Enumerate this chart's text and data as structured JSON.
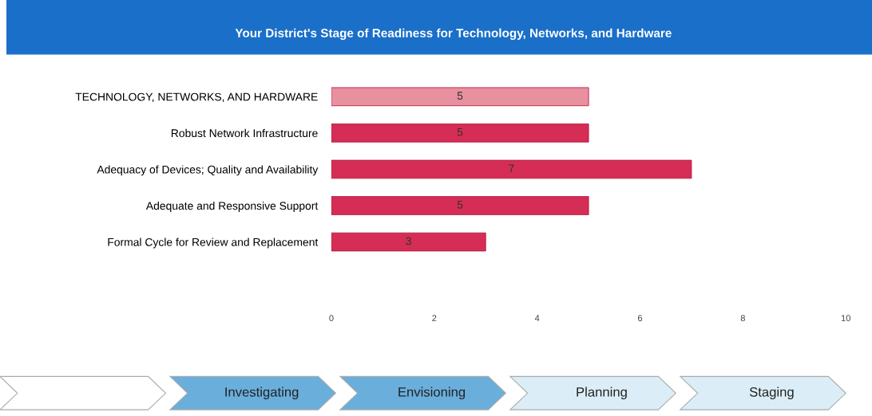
{
  "chart_data": {
    "type": "bar",
    "orientation": "horizontal",
    "title": "Your District's Stage of Readiness for Technology, Networks, and Hardware",
    "categories": [
      "TECHNOLOGY, NETWORKS, AND HARDWARE",
      "Robust Network Infrastructure",
      "Adequacy of Devices; Quality and Availability",
      "Adequate and Responsive Support",
      "Formal Cycle for Review and Replacement"
    ],
    "values": [
      5,
      5,
      7,
      5,
      3
    ],
    "colors": [
      "#e8909f",
      "#d52d55",
      "#d52d55",
      "#d52d55",
      "#d52d55"
    ],
    "xlim": [
      0,
      10
    ],
    "xticks": [
      0,
      2,
      4,
      6,
      8,
      10
    ],
    "data_labels": true,
    "grid": false,
    "annotations": [
      "Investigating",
      "Envisioning",
      "Planning",
      "Staging"
    ]
  }
}
